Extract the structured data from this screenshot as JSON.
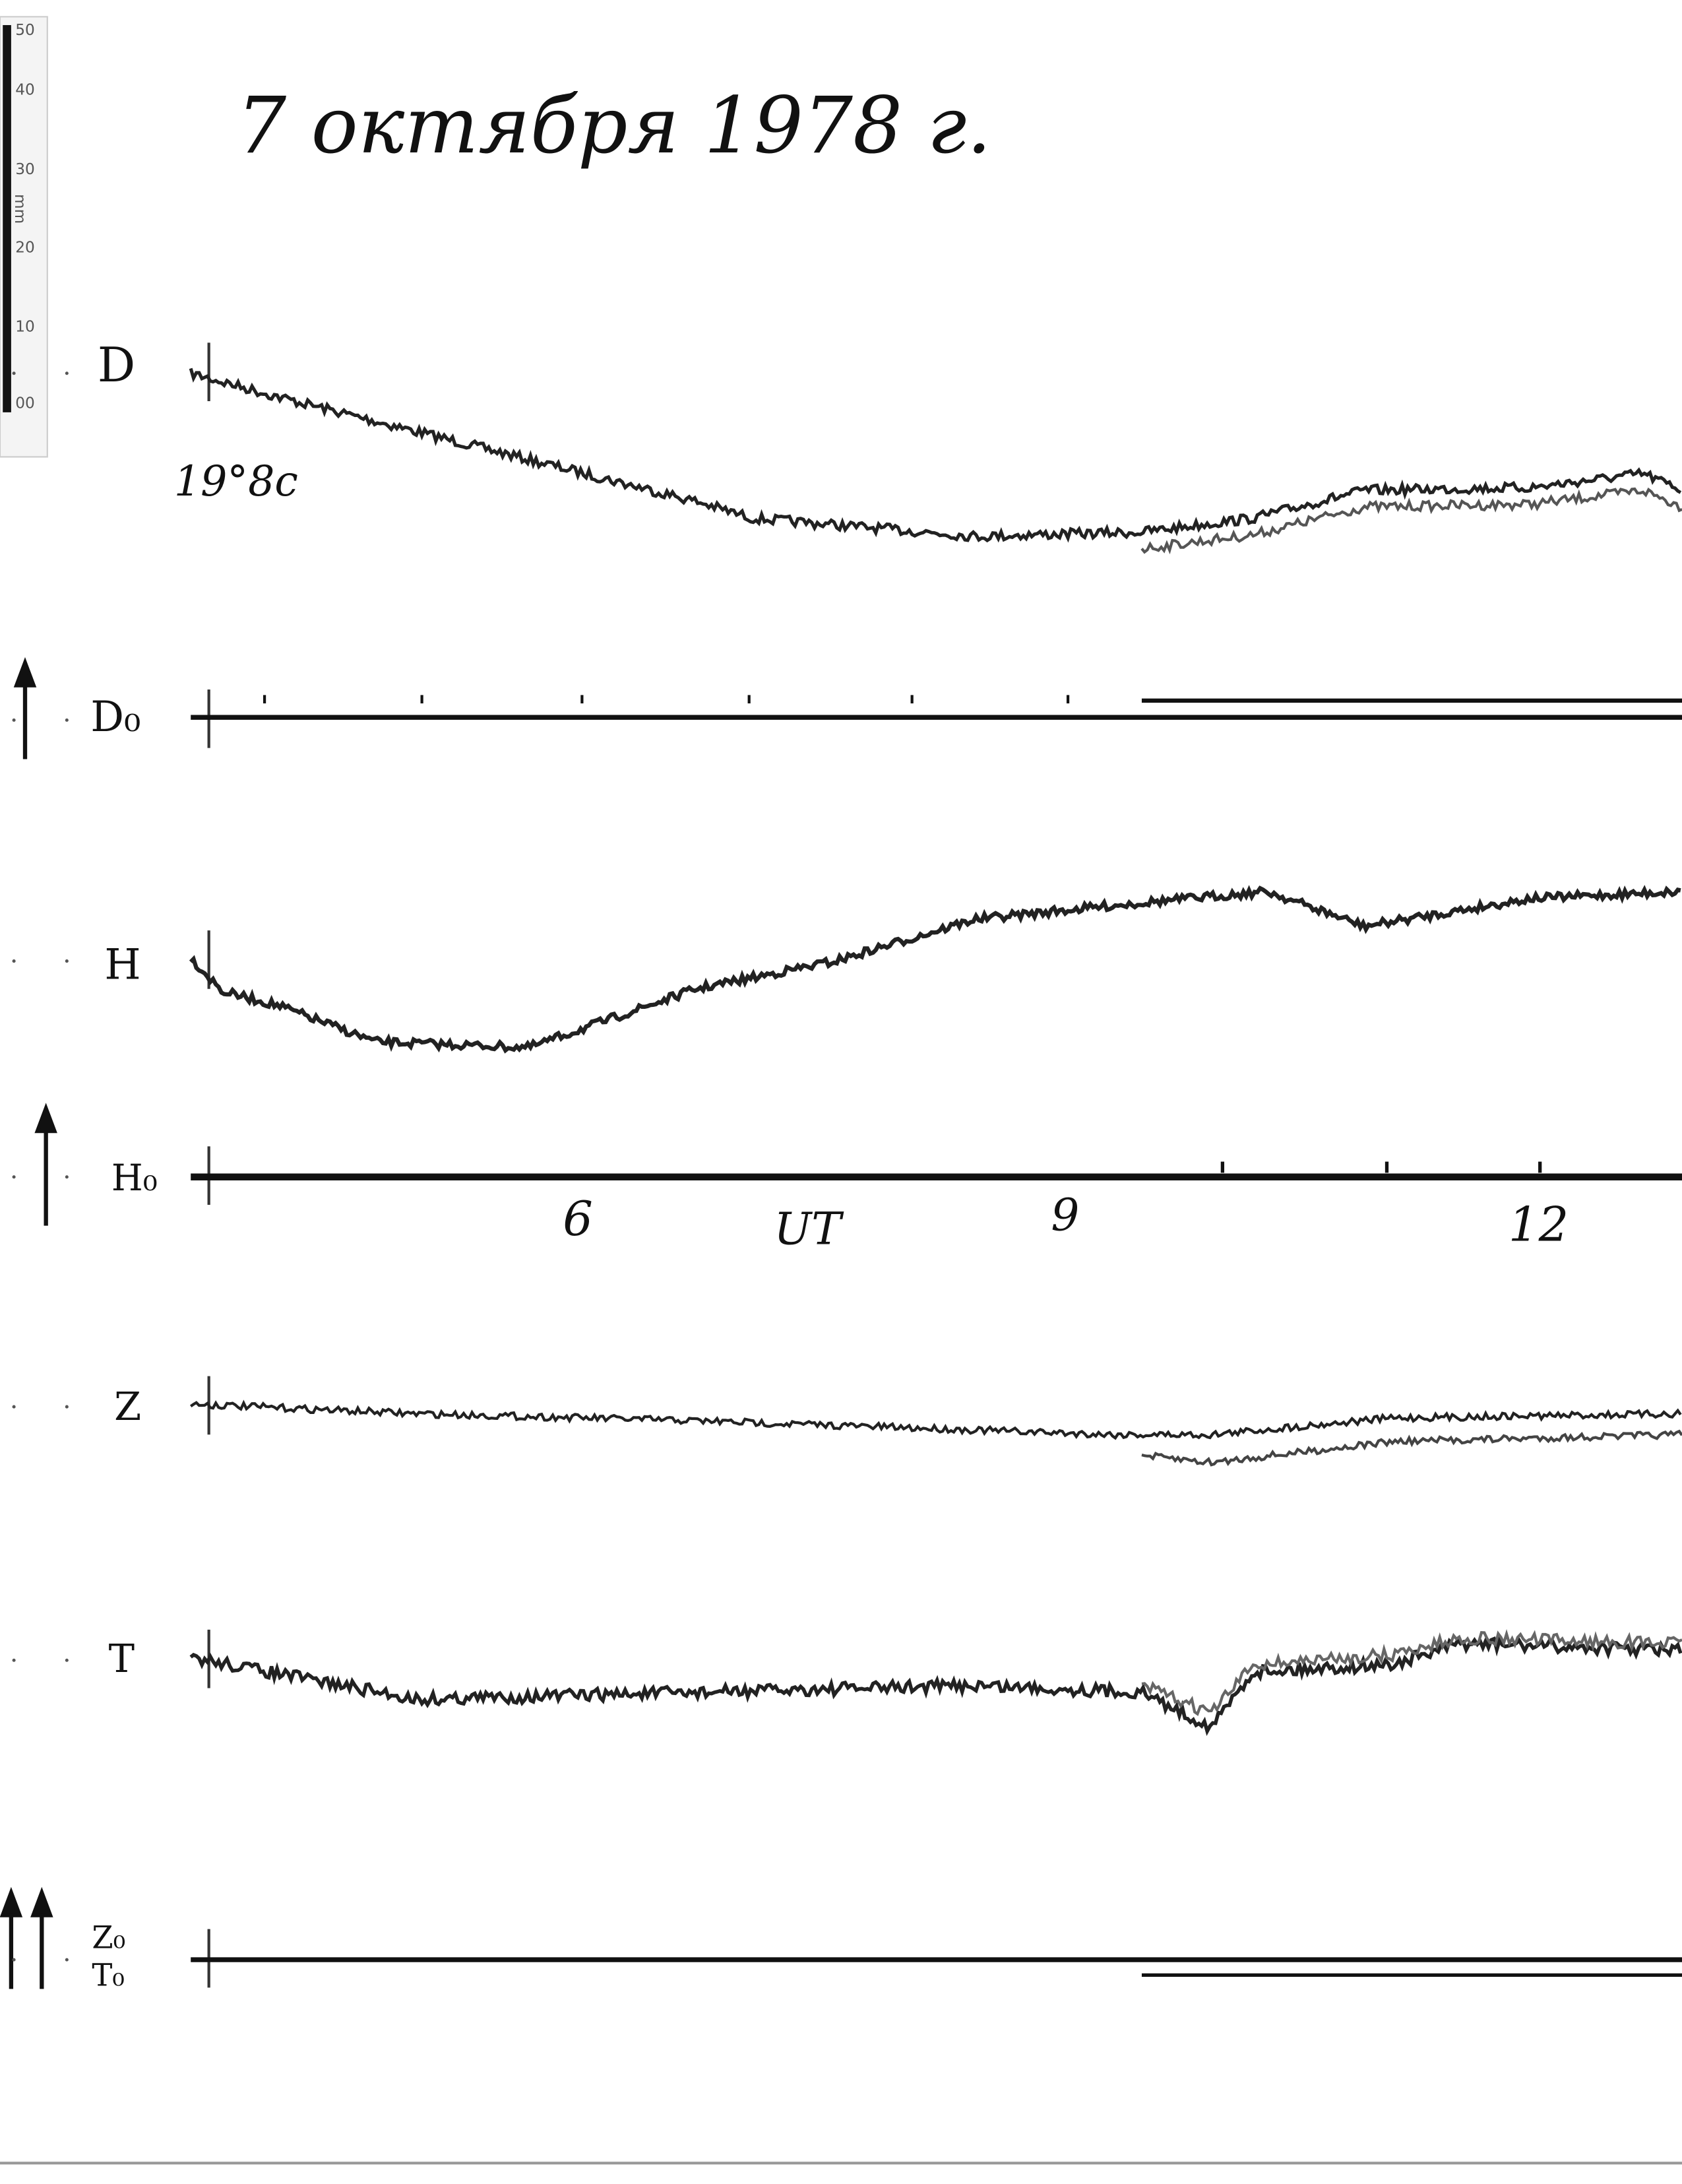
{
  "title": "7 октября 1978 г.",
  "scale": {
    "ticks": [
      "50",
      "40",
      "30",
      "20",
      "10",
      "00"
    ],
    "unit": "mm"
  },
  "traces": [
    {
      "label": "D",
      "note": "19°8c"
    },
    {
      "label": "D₀"
    },
    {
      "label": "H"
    },
    {
      "label": "H₀"
    },
    {
      "label": "Z"
    },
    {
      "label": "T"
    },
    {
      "label": "Z₀"
    },
    {
      "label": "T₀"
    }
  ],
  "time_axis": {
    "labels": [
      "6",
      "9",
      "12"
    ],
    "unit": "UT"
  }
}
